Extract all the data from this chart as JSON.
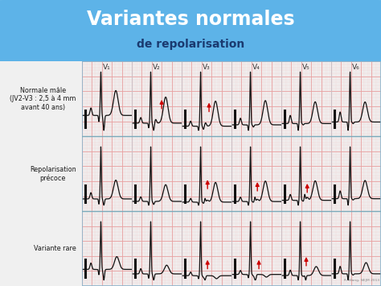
{
  "title_line1": "Variantes normales",
  "title_line2": "de repolarisation",
  "title_bg_color": "#5db3e8",
  "title_text_color1": "#ffffff",
  "title_text_color2": "#1a3a70",
  "row_labels": [
    "Normale mâle\n(JV2-V3 : 2,5 à 4 mm\navant 40 ans)",
    "Repolarisation\nprécoce",
    "Variante rare"
  ],
  "col_labels": [
    "V₁",
    "V₂",
    "V₃",
    "V₄",
    "V₅",
    "V₆"
  ],
  "grid_color_major": "#e8a0a0",
  "grid_color_minor": "#f2d0d0",
  "ecg_color": "#111111",
  "arrow_color": "#cc0000",
  "panel_bg": "#fdf0ee",
  "panel_border_color": "#8ab4cc",
  "fig_bg": "#e8e8e8",
  "watermark": "R. Wang, NEJM 2013",
  "row_sep_color": "#7aaabb",
  "col_sep_color": "#c0c8d0"
}
